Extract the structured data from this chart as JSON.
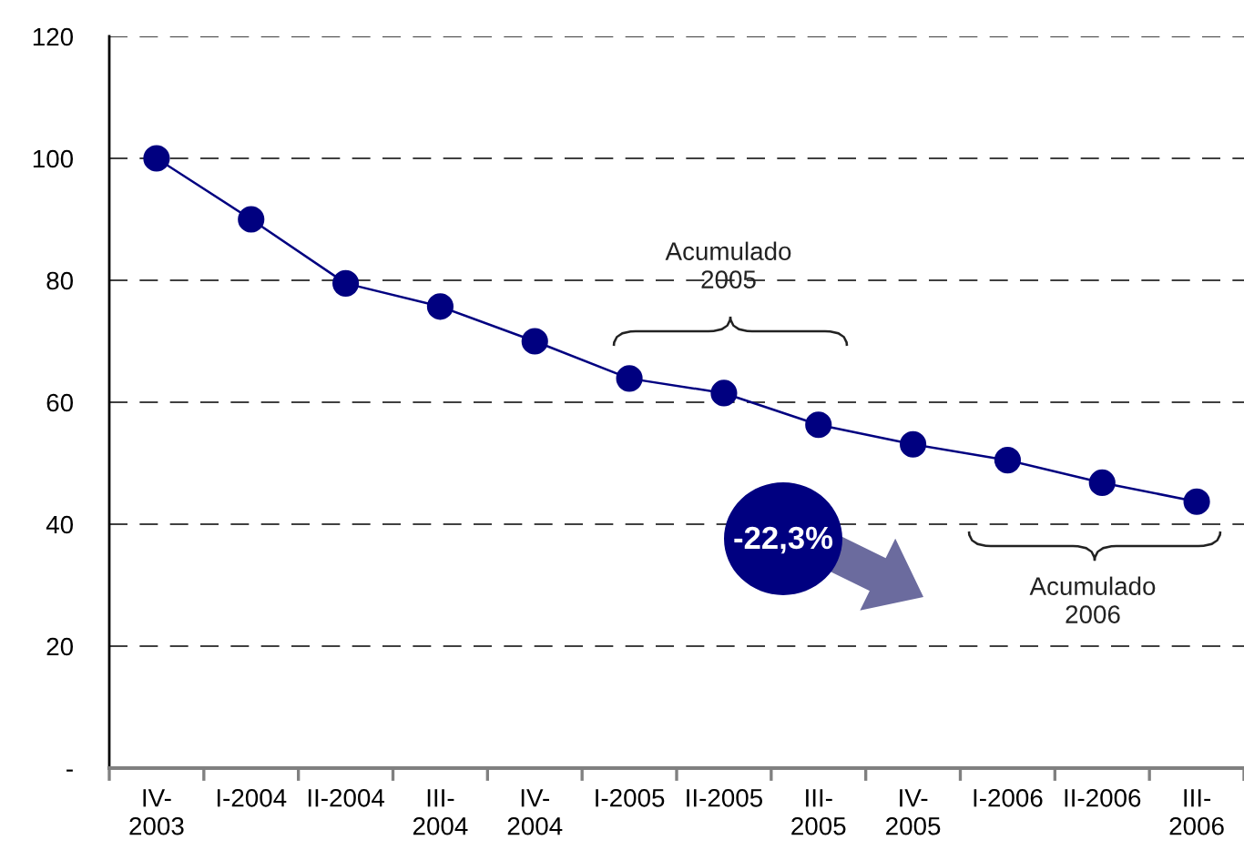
{
  "chart_data": {
    "type": "line",
    "categories": [
      "IV-\n2003",
      "I-2004",
      "II-2004",
      "III-\n2004",
      "IV-\n2004",
      "I-2005",
      "II-2005",
      "III-\n2005",
      "IV-\n2005",
      "I-2006",
      "II-2006",
      "III-\n2006"
    ],
    "series": [
      {
        "color": "#000080",
        "values": [
          100,
          90,
          79.5,
          75.7,
          70,
          63.9,
          61.5,
          56.3,
          53.1,
          50.5,
          46.8,
          43.7
        ]
      }
    ],
    "ylim": [
      0,
      120
    ],
    "yticks": [
      {
        "value": 0,
        "label": "-"
      },
      20,
      40,
      60,
      80,
      100,
      120
    ],
    "grid": "y",
    "marker": "circle",
    "line_style": "solid",
    "annotations": [
      "Acumulado\n2005",
      "-22,3%",
      "Acumulado\n2006"
    ]
  }
}
